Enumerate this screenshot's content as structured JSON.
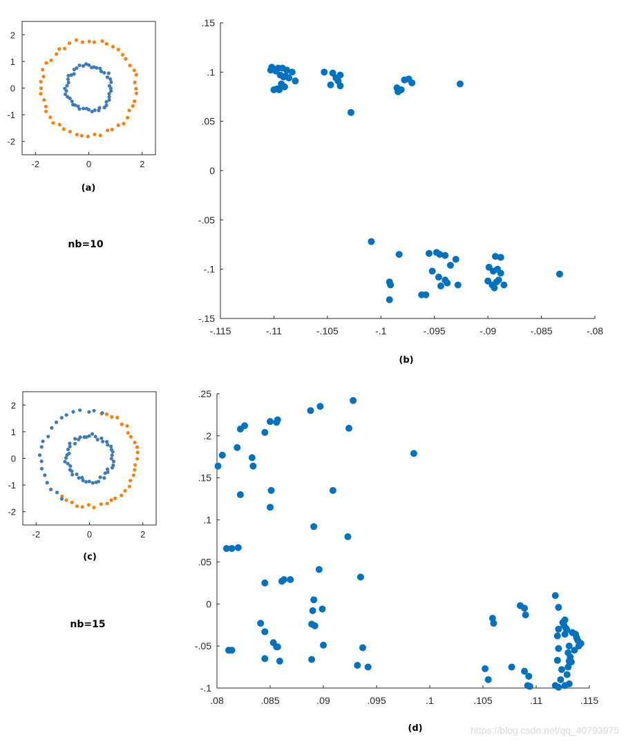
{
  "colors": {
    "blue": "#3d7ab8",
    "orange": "#ff7f0e",
    "spectral": "#0072bd",
    "axis": "#262626"
  },
  "labels": {
    "a": "(a)",
    "b": "(b)",
    "c": "(c)",
    "d": "(d)",
    "nb10": "nb=10",
    "nb15": "nb=15",
    "watermark": "https://blog.csdn.net/qq_40793975"
  },
  "chart_data": [
    {
      "id": "a",
      "type": "scatter",
      "caption": "(a)",
      "xlim": [
        -2.5,
        2.5
      ],
      "ylim": [
        -2.5,
        2.5
      ],
      "xticks": [
        -2,
        0,
        2
      ],
      "yticks": [
        -2,
        -1,
        0,
        1,
        2
      ],
      "series": [
        {
          "color": "orange",
          "shape": "ring",
          "r": 1.8,
          "n": 48,
          "noise": 0.07,
          "seed": 11,
          "start": 0
        },
        {
          "color": "blue",
          "shape": "ring",
          "r": 0.85,
          "n": 48,
          "noise": 0.09,
          "seed": 12,
          "start": 0
        }
      ]
    },
    {
      "id": "b",
      "type": "scatter",
      "caption": "(b)",
      "xlim": [
        -0.115,
        -0.08
      ],
      "ylim": [
        -0.15,
        0.15
      ],
      "xticks": [
        -0.115,
        -0.11,
        -0.105,
        -0.1,
        -0.095,
        -0.09,
        -0.085,
        -0.08
      ],
      "yticks": [
        -0.15,
        -0.1,
        -0.05,
        0,
        0.05,
        0.1,
        0.15
      ],
      "points": [
        [
          -0.1102,
          0.105
        ],
        [
          -0.1096,
          0.104
        ],
        [
          -0.1092,
          0.104
        ],
        [
          -0.1088,
          0.102
        ],
        [
          -0.1098,
          0.101
        ],
        [
          -0.1094,
          0.097
        ],
        [
          -0.1091,
          0.095
        ],
        [
          -0.1089,
          0.096
        ],
        [
          -0.1086,
          0.094
        ],
        [
          -0.1093,
          0.088
        ],
        [
          -0.109,
          0.085
        ],
        [
          -0.1097,
          0.083
        ],
        [
          -0.11,
          0.082
        ],
        [
          -0.1095,
          0.082
        ],
        [
          -0.1103,
          0.102
        ],
        [
          -0.1083,
          0.1
        ],
        [
          -0.108,
          0.091
        ],
        [
          -0.1053,
          0.1
        ],
        [
          -0.1045,
          0.099
        ],
        [
          -0.1038,
          0.097
        ],
        [
          -0.1042,
          0.094
        ],
        [
          -0.104,
          0.091
        ],
        [
          -0.1047,
          0.087
        ],
        [
          -0.1038,
          0.086
        ],
        [
          -0.1028,
          0.059
        ],
        [
          -0.0985,
          0.084
        ],
        [
          -0.0981,
          0.082
        ],
        [
          -0.0984,
          0.08
        ],
        [
          -0.0978,
          0.092
        ],
        [
          -0.0974,
          0.093
        ],
        [
          -0.0971,
          0.089
        ],
        [
          -0.0926,
          0.088
        ],
        [
          -0.1009,
          -0.072
        ],
        [
          -0.0983,
          -0.085
        ],
        [
          -0.0992,
          -0.113
        ],
        [
          -0.0991,
          -0.116
        ],
        [
          -0.0992,
          -0.131
        ],
        [
          -0.0955,
          -0.084
        ],
        [
          -0.0948,
          -0.083
        ],
        [
          -0.0945,
          -0.085
        ],
        [
          -0.094,
          -0.086
        ],
        [
          -0.0935,
          -0.096
        ],
        [
          -0.093,
          -0.09
        ],
        [
          -0.0952,
          -0.102
        ],
        [
          -0.0946,
          -0.108
        ],
        [
          -0.094,
          -0.111
        ],
        [
          -0.0938,
          -0.114
        ],
        [
          -0.0944,
          -0.117
        ],
        [
          -0.0928,
          -0.116
        ],
        [
          -0.0962,
          -0.126
        ],
        [
          -0.0958,
          -0.126
        ],
        [
          -0.0893,
          -0.087
        ],
        [
          -0.0888,
          -0.088
        ],
        [
          -0.0899,
          -0.098
        ],
        [
          -0.0895,
          -0.102
        ],
        [
          -0.0891,
          -0.1
        ],
        [
          -0.09,
          -0.112
        ],
        [
          -0.0896,
          -0.116
        ],
        [
          -0.0892,
          -0.113
        ],
        [
          -0.0894,
          -0.119
        ],
        [
          -0.089,
          -0.111
        ],
        [
          -0.0885,
          -0.116
        ],
        [
          -0.0888,
          -0.104
        ],
        [
          -0.0833,
          -0.105
        ]
      ]
    },
    {
      "id": "c",
      "type": "scatter",
      "caption": "(c)",
      "xlim": [
        -2.5,
        2.5
      ],
      "ylim": [
        -2.5,
        2.5
      ],
      "xticks": [
        -2,
        0,
        2
      ],
      "yticks": [
        -2,
        -1,
        0,
        1,
        2
      ],
      "series": [
        {
          "color": "orange",
          "shape": "arc",
          "r": 1.8,
          "n": 30,
          "noise": 0.07,
          "seed": 21,
          "from": -125,
          "to": 75
        },
        {
          "color": "blue",
          "shape": "arc",
          "r": 1.8,
          "n": 20,
          "noise": 0.07,
          "seed": 22,
          "from": 75,
          "to": 235
        },
        {
          "color": "blue",
          "shape": "ring",
          "r": 0.85,
          "n": 48,
          "noise": 0.09,
          "seed": 23,
          "start": 0
        }
      ]
    },
    {
      "id": "d",
      "type": "scatter",
      "caption": "(d)",
      "xlim": [
        0.08,
        0.115
      ],
      "ylim": [
        -0.1,
        0.25
      ],
      "xticks": [
        0.08,
        0.085,
        0.09,
        0.095,
        0.1,
        0.105,
        0.11,
        0.115
      ],
      "yticks": [
        -0.1,
        -0.05,
        0,
        0.05,
        0.1,
        0.15,
        0.2,
        0.25
      ],
      "points": [
        [
          0.0801,
          0.164
        ],
        [
          0.0805,
          0.177
        ],
        [
          0.0819,
          0.186
        ],
        [
          0.0822,
          0.208
        ],
        [
          0.0826,
          0.212
        ],
        [
          0.0833,
          0.174
        ],
        [
          0.0834,
          0.164
        ],
        [
          0.0822,
          0.13
        ],
        [
          0.0845,
          0.204
        ],
        [
          0.085,
          0.217
        ],
        [
          0.0856,
          0.216
        ],
        [
          0.0857,
          0.219
        ],
        [
          0.0851,
          0.135
        ],
        [
          0.085,
          0.115
        ],
        [
          0.0888,
          0.23
        ],
        [
          0.0897,
          0.235
        ],
        [
          0.0928,
          0.242
        ],
        [
          0.0924,
          0.209
        ],
        [
          0.0985,
          0.179
        ],
        [
          0.0909,
          0.135
        ],
        [
          0.0891,
          0.092
        ],
        [
          0.0923,
          0.08
        ],
        [
          0.0809,
          0.066
        ],
        [
          0.0814,
          0.066
        ],
        [
          0.082,
          0.067
        ],
        [
          0.0845,
          0.025
        ],
        [
          0.0863,
          0.029
        ],
        [
          0.0861,
          0.027
        ],
        [
          0.0869,
          0.029
        ],
        [
          0.0896,
          0.041
        ],
        [
          0.0935,
          0.032
        ],
        [
          0.0891,
          0.005
        ],
        [
          0.089,
          -0.008
        ],
        [
          0.0899,
          -0.006
        ],
        [
          0.0841,
          -0.023
        ],
        [
          0.0845,
          -0.033
        ],
        [
          0.0889,
          -0.024
        ],
        [
          0.0892,
          -0.026
        ],
        [
          0.0853,
          -0.046
        ],
        [
          0.0856,
          -0.051
        ],
        [
          0.0857,
          -0.051
        ],
        [
          0.0811,
          -0.055
        ],
        [
          0.0814,
          -0.055
        ],
        [
          0.0845,
          -0.065
        ],
        [
          0.0859,
          -0.068
        ],
        [
          0.0889,
          -0.066
        ],
        [
          0.09,
          -0.049
        ],
        [
          0.0937,
          -0.052
        ],
        [
          0.0932,
          -0.073
        ],
        [
          0.0942,
          -0.075
        ],
        [
          0.1052,
          -0.077
        ],
        [
          0.1055,
          -0.09
        ],
        [
          0.1059,
          -0.017
        ],
        [
          0.106,
          -0.023
        ],
        [
          0.1077,
          -0.075
        ],
        [
          0.1085,
          -0.002
        ],
        [
          0.1089,
          -0.005
        ],
        [
          0.109,
          -0.013
        ],
        [
          0.1089,
          -0.08
        ],
        [
          0.1093,
          -0.086
        ],
        [
          0.1092,
          -0.097
        ],
        [
          0.1094,
          -0.098
        ],
        [
          0.1118,
          0.01
        ],
        [
          0.1121,
          -0.004
        ],
        [
          0.1121,
          -0.03
        ],
        [
          0.112,
          -0.038
        ],
        [
          0.1121,
          -0.053
        ],
        [
          0.112,
          -0.067
        ],
        [
          0.1118,
          -0.097
        ],
        [
          0.1121,
          -0.099
        ],
        [
          0.1123,
          -0.09
        ],
        [
          0.1124,
          -0.078
        ],
        [
          0.1125,
          -0.022
        ],
        [
          0.1127,
          -0.019
        ],
        [
          0.1126,
          -0.025
        ],
        [
          0.1128,
          -0.029
        ],
        [
          0.1129,
          -0.031
        ],
        [
          0.1127,
          -0.036
        ],
        [
          0.1131,
          -0.05
        ],
        [
          0.113,
          -0.058
        ],
        [
          0.1132,
          -0.063
        ],
        [
          0.1131,
          -0.068
        ],
        [
          0.1133,
          -0.069
        ],
        [
          0.1129,
          -0.084
        ],
        [
          0.113,
          -0.075
        ],
        [
          0.1127,
          -0.097
        ],
        [
          0.1131,
          -0.095
        ],
        [
          0.1134,
          -0.034
        ],
        [
          0.1137,
          -0.036
        ],
        [
          0.1139,
          -0.043
        ],
        [
          0.114,
          -0.05
        ],
        [
          0.1142,
          -0.047
        ],
        [
          0.1138,
          -0.04
        ],
        [
          0.1136,
          -0.055
        ]
      ]
    }
  ]
}
